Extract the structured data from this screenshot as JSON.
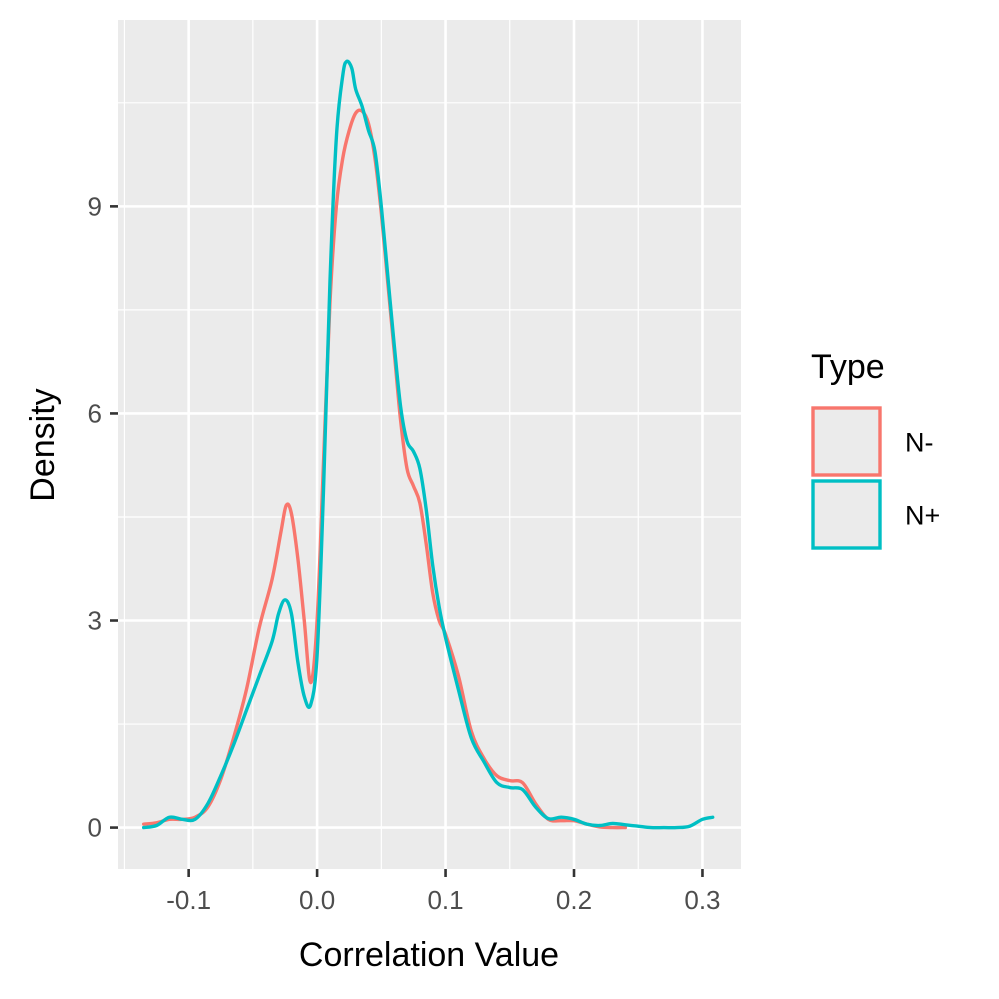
{
  "chart_data": {
    "type": "line",
    "xlabel": "Correlation Value",
    "ylabel": "Density",
    "xlim": [
      -0.155,
      0.33
    ],
    "ylim": [
      -0.6,
      11.7
    ],
    "x_ticks": [
      -0.1,
      0.0,
      0.1,
      0.2,
      0.3
    ],
    "x_tick_labels": [
      "-0.1",
      "0.0",
      "0.1",
      "0.2",
      "0.3"
    ],
    "y_ticks": [
      0,
      3,
      6,
      9
    ],
    "y_tick_labels": [
      "0",
      "3",
      "6",
      "9"
    ],
    "grid": true,
    "legend": {
      "title": "Type",
      "position": "right"
    },
    "series": [
      {
        "name": "N-",
        "color": "#F8766D",
        "points": [
          [
            -0.135,
            0.05
          ],
          [
            -0.125,
            0.07
          ],
          [
            -0.115,
            0.12
          ],
          [
            -0.105,
            0.12
          ],
          [
            -0.095,
            0.15
          ],
          [
            -0.085,
            0.3
          ],
          [
            -0.075,
            0.7
          ],
          [
            -0.065,
            1.3
          ],
          [
            -0.055,
            2.0
          ],
          [
            -0.045,
            2.9
          ],
          [
            -0.035,
            3.6
          ],
          [
            -0.028,
            4.3
          ],
          [
            -0.024,
            4.67
          ],
          [
            -0.02,
            4.55
          ],
          [
            -0.015,
            3.9
          ],
          [
            -0.01,
            3.0
          ],
          [
            -0.005,
            2.1
          ],
          [
            0.0,
            3.0
          ],
          [
            0.005,
            5.3
          ],
          [
            0.01,
            7.6
          ],
          [
            0.015,
            9.0
          ],
          [
            0.02,
            9.7
          ],
          [
            0.025,
            10.1
          ],
          [
            0.03,
            10.35
          ],
          [
            0.035,
            10.38
          ],
          [
            0.04,
            10.2
          ],
          [
            0.045,
            9.7
          ],
          [
            0.05,
            8.9
          ],
          [
            0.055,
            7.9
          ],
          [
            0.06,
            6.9
          ],
          [
            0.065,
            5.9
          ],
          [
            0.07,
            5.2
          ],
          [
            0.075,
            4.95
          ],
          [
            0.08,
            4.7
          ],
          [
            0.085,
            4.1
          ],
          [
            0.09,
            3.4
          ],
          [
            0.095,
            3.0
          ],
          [
            0.1,
            2.8
          ],
          [
            0.11,
            2.2
          ],
          [
            0.12,
            1.4
          ],
          [
            0.13,
            1.0
          ],
          [
            0.14,
            0.75
          ],
          [
            0.15,
            0.68
          ],
          [
            0.16,
            0.65
          ],
          [
            0.17,
            0.35
          ],
          [
            0.18,
            0.12
          ],
          [
            0.19,
            0.1
          ],
          [
            0.2,
            0.1
          ],
          [
            0.21,
            0.05
          ],
          [
            0.22,
            0.01
          ],
          [
            0.23,
            0.0
          ],
          [
            0.24,
            0.0
          ]
        ]
      },
      {
        "name": "N+",
        "color": "#00BFC4",
        "points": [
          [
            -0.135,
            0.0
          ],
          [
            -0.125,
            0.03
          ],
          [
            -0.115,
            0.15
          ],
          [
            -0.105,
            0.12
          ],
          [
            -0.095,
            0.12
          ],
          [
            -0.085,
            0.35
          ],
          [
            -0.075,
            0.75
          ],
          [
            -0.065,
            1.2
          ],
          [
            -0.055,
            1.7
          ],
          [
            -0.045,
            2.2
          ],
          [
            -0.035,
            2.7
          ],
          [
            -0.03,
            3.1
          ],
          [
            -0.025,
            3.3
          ],
          [
            -0.02,
            3.1
          ],
          [
            -0.015,
            2.4
          ],
          [
            -0.01,
            1.9
          ],
          [
            -0.005,
            1.78
          ],
          [
            0.0,
            2.5
          ],
          [
            0.005,
            4.9
          ],
          [
            0.01,
            7.9
          ],
          [
            0.015,
            10.0
          ],
          [
            0.02,
            10.9
          ],
          [
            0.023,
            11.1
          ],
          [
            0.027,
            11.0
          ],
          [
            0.03,
            10.7
          ],
          [
            0.035,
            10.45
          ],
          [
            0.04,
            10.1
          ],
          [
            0.045,
            9.8
          ],
          [
            0.05,
            9.0
          ],
          [
            0.055,
            8.0
          ],
          [
            0.06,
            7.0
          ],
          [
            0.065,
            6.1
          ],
          [
            0.07,
            5.6
          ],
          [
            0.075,
            5.45
          ],
          [
            0.08,
            5.2
          ],
          [
            0.085,
            4.6
          ],
          [
            0.09,
            3.8
          ],
          [
            0.095,
            3.2
          ],
          [
            0.1,
            2.75
          ],
          [
            0.11,
            2.0
          ],
          [
            0.12,
            1.3
          ],
          [
            0.13,
            0.95
          ],
          [
            0.14,
            0.65
          ],
          [
            0.15,
            0.58
          ],
          [
            0.16,
            0.55
          ],
          [
            0.17,
            0.3
          ],
          [
            0.18,
            0.13
          ],
          [
            0.19,
            0.15
          ],
          [
            0.2,
            0.12
          ],
          [
            0.21,
            0.05
          ],
          [
            0.22,
            0.03
          ],
          [
            0.23,
            0.06
          ],
          [
            0.24,
            0.04
          ],
          [
            0.25,
            0.02
          ],
          [
            0.26,
            0.0
          ],
          [
            0.27,
            0.0
          ],
          [
            0.28,
            0.0
          ],
          [
            0.29,
            0.02
          ],
          [
            0.3,
            0.12
          ],
          [
            0.308,
            0.15
          ]
        ]
      }
    ]
  }
}
